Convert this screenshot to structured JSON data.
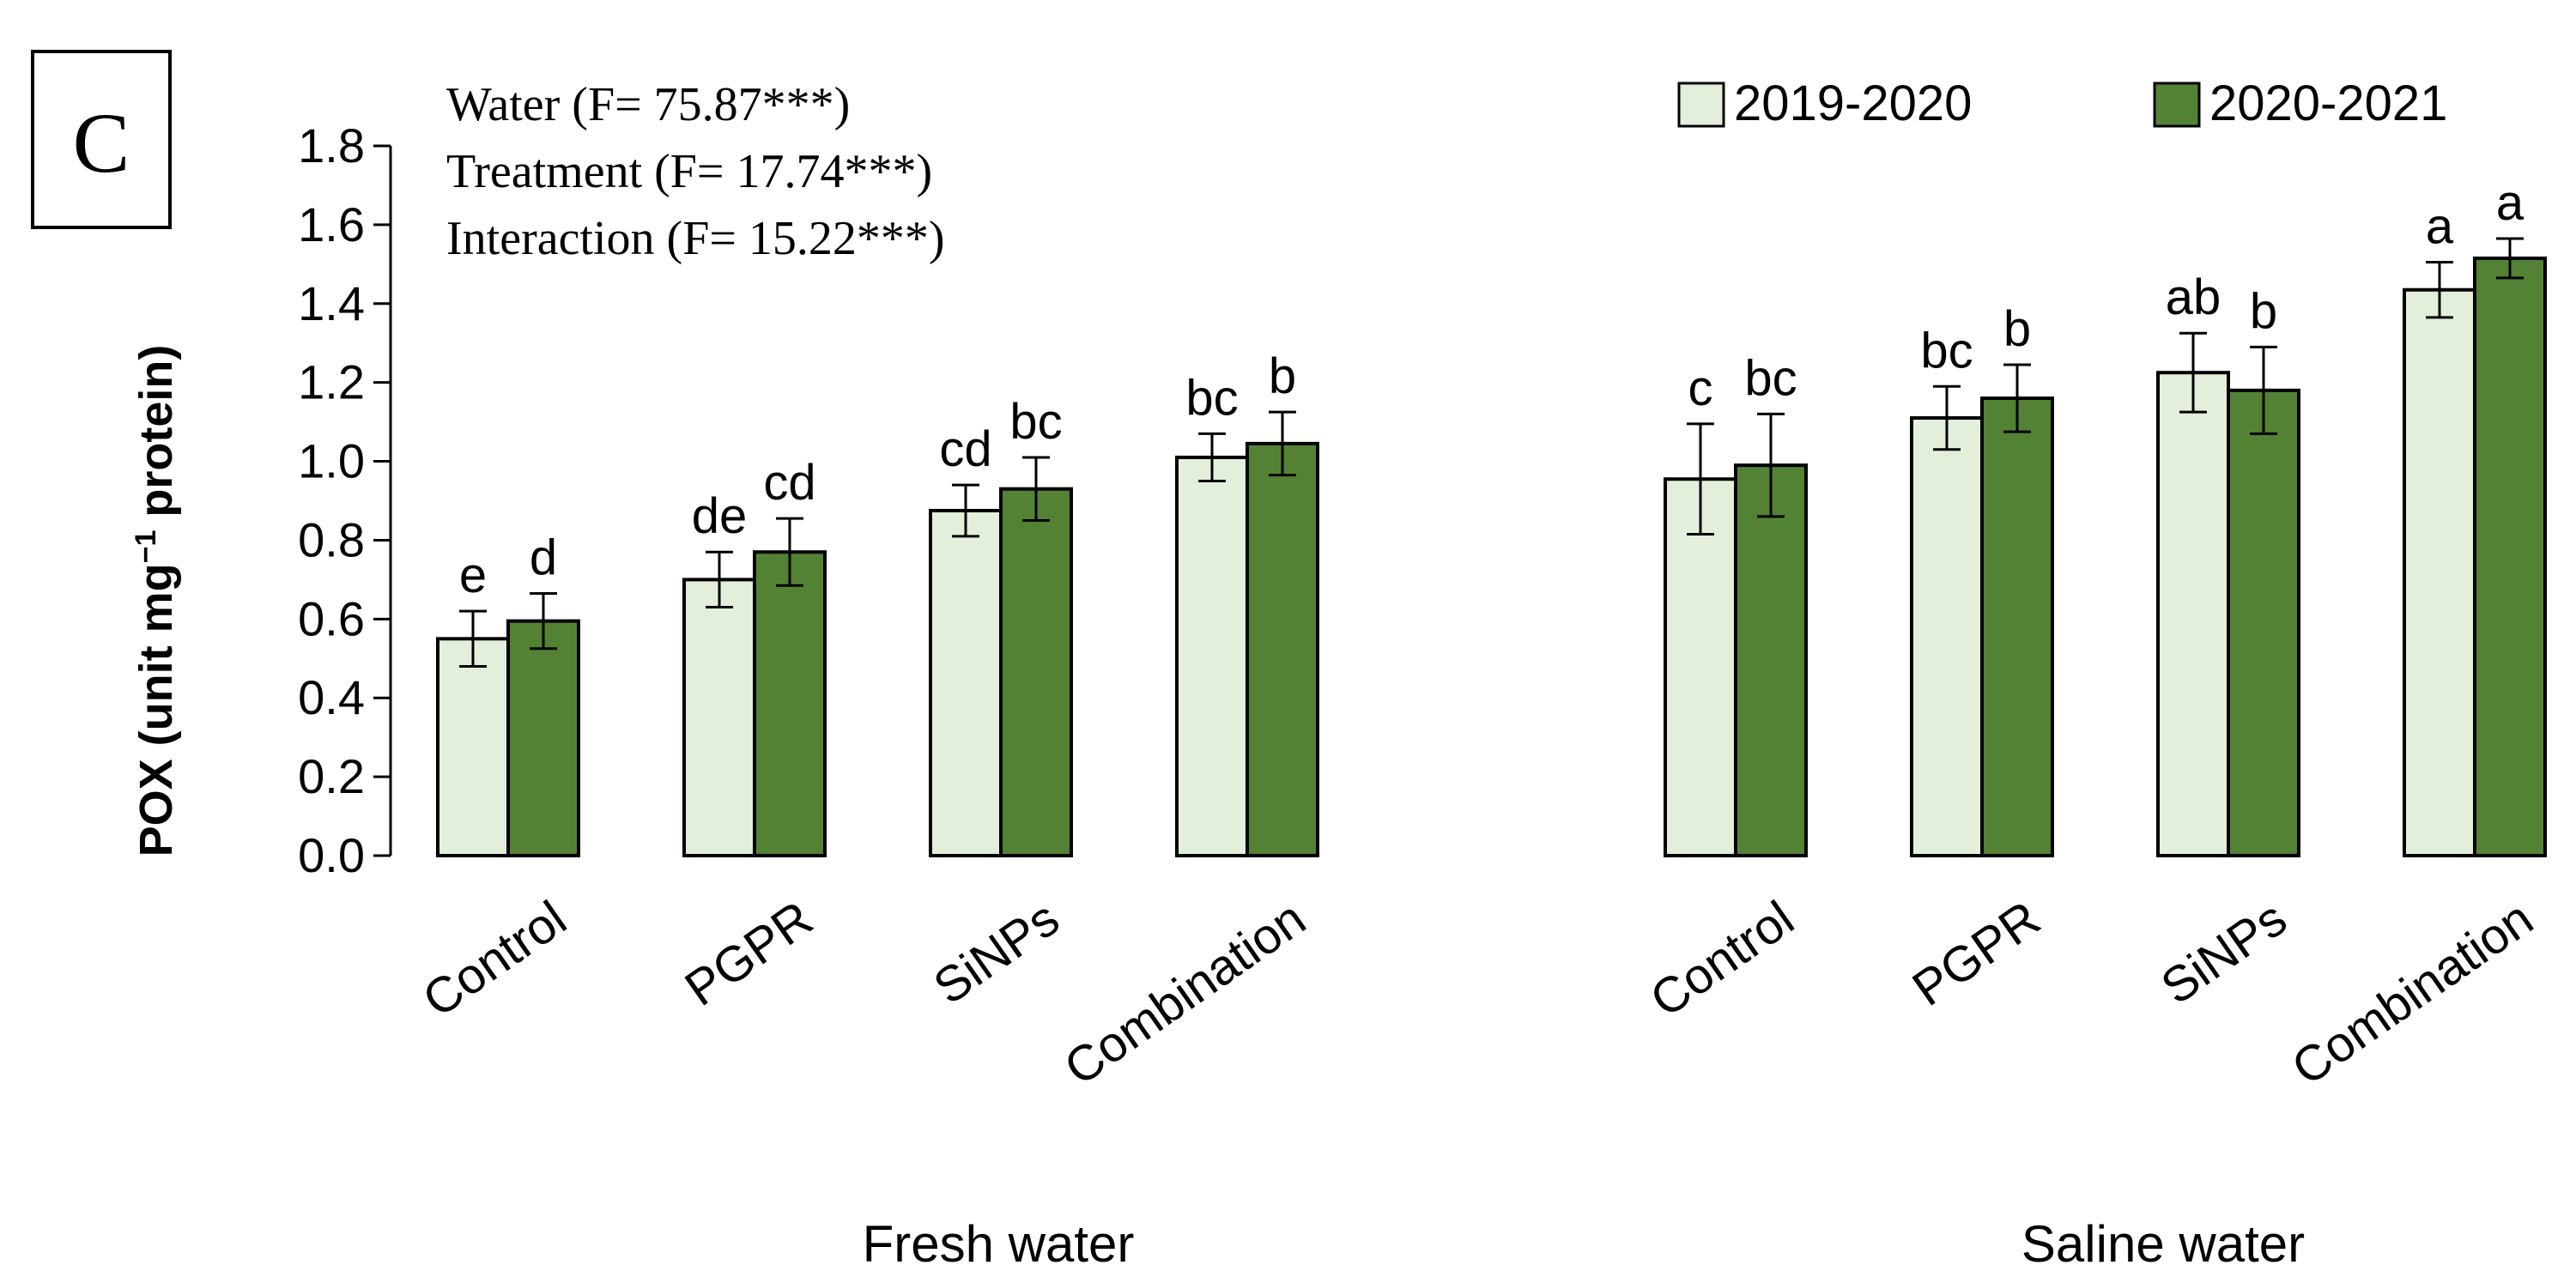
{
  "chart_data": {
    "type": "bar",
    "panel_label": "C",
    "ylabel": "POX (unit mg",
    "ylabel_sup": "−1",
    "ylabel_tail": " protein)",
    "ylim": [
      0,
      1.8
    ],
    "yticks": [
      "0.0",
      "0.2",
      "0.4",
      "0.6",
      "0.8",
      "1.0",
      "1.2",
      "1.4",
      "1.6",
      "1.8"
    ],
    "stats": [
      "Water (F= 75.87***)",
      "Treatment (F= 17.74***)",
      "Interaction (F= 15.22***)"
    ],
    "series": [
      {
        "name": "2019-2020",
        "color": "#e3efda"
      },
      {
        "name": "2020-2021",
        "color": "#548235"
      }
    ],
    "groups": [
      {
        "name": "Fresh water",
        "categories": [
          {
            "label": "Control",
            "values": [
              0.55,
              0.595
            ],
            "errors": [
              0.07,
              0.07
            ],
            "letters": [
              "e",
              "d"
            ]
          },
          {
            "label": "PGPR",
            "values": [
              0.7,
              0.77
            ],
            "errors": [
              0.07,
              0.085
            ],
            "letters": [
              "de",
              "cd"
            ]
          },
          {
            "label": "SiNPs",
            "values": [
              0.875,
              0.93
            ],
            "errors": [
              0.065,
              0.08
            ],
            "letters": [
              "cd",
              "bc"
            ]
          },
          {
            "label": "Combination",
            "values": [
              1.01,
              1.045
            ],
            "errors": [
              0.06,
              0.08
            ],
            "letters": [
              "bc",
              "b"
            ]
          }
        ]
      },
      {
        "name": "Saline water",
        "categories": [
          {
            "label": "Control",
            "values": [
              0.955,
              0.99
            ],
            "errors": [
              0.14,
              0.13
            ],
            "letters": [
              "c",
              "bc"
            ]
          },
          {
            "label": "PGPR",
            "values": [
              1.11,
              1.16
            ],
            "errors": [
              0.08,
              0.085
            ],
            "letters": [
              "bc",
              "b"
            ]
          },
          {
            "label": "SiNPs",
            "values": [
              1.225,
              1.18
            ],
            "errors": [
              0.1,
              0.11
            ],
            "letters": [
              "ab",
              "b"
            ]
          },
          {
            "label": "Combination",
            "values": [
              1.435,
              1.515
            ],
            "errors": [
              0.07,
              0.05
            ],
            "letters": [
              "a",
              "a"
            ]
          }
        ]
      }
    ]
  }
}
